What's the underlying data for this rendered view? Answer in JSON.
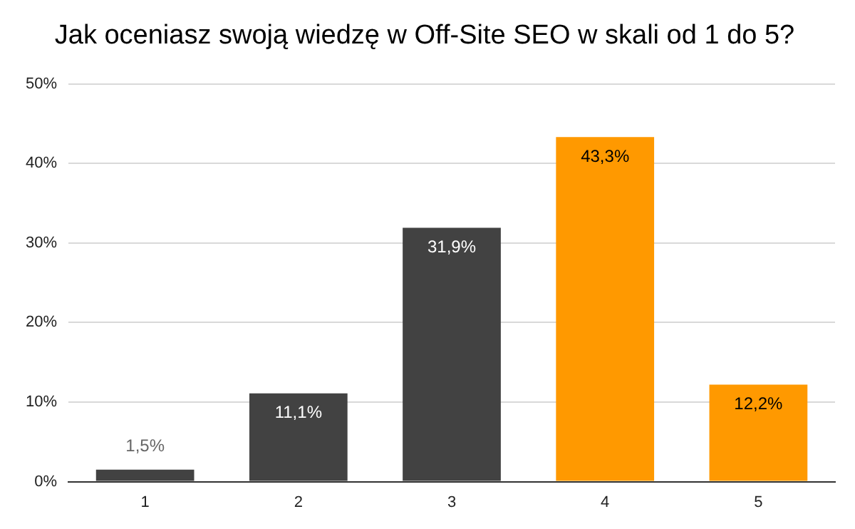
{
  "chart_data": {
    "type": "bar",
    "title": "Jak oceniasz swoją wiedzę w Off-Site SEO w skali od 1 do 5?",
    "categories": [
      "1",
      "2",
      "3",
      "4",
      "5"
    ],
    "values": [
      1.5,
      11.1,
      31.9,
      43.3,
      12.2
    ],
    "colors": [
      "#424242",
      "#424242",
      "#424242",
      "#ff9900",
      "#ff9900"
    ],
    "value_labels": [
      "1,5%",
      "11,1%",
      "31,9%",
      "43,3%",
      "12,2%"
    ],
    "ylim": [
      0,
      50
    ],
    "yticks": [
      {
        "value": 0,
        "label": "0%"
      },
      {
        "value": 10,
        "label": "10%"
      },
      {
        "value": 20,
        "label": "20%"
      },
      {
        "value": 30,
        "label": "30%"
      },
      {
        "value": 40,
        "label": "40%"
      },
      {
        "value": 50,
        "label": "50%"
      }
    ],
    "grid": "y",
    "legend": false
  }
}
